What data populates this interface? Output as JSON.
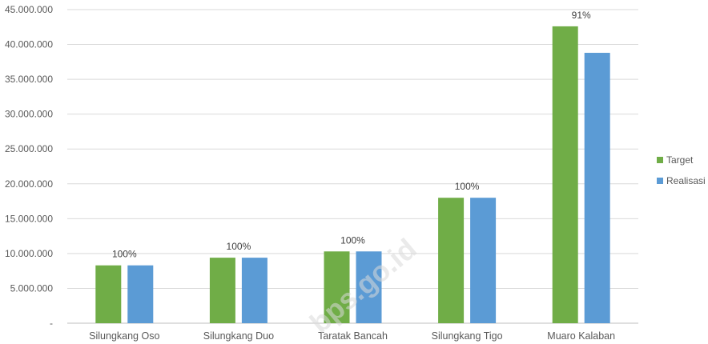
{
  "chart_data": {
    "type": "bar",
    "categories": [
      "Silungkang Oso",
      "Silungkang Duo",
      "Taratak Bancah",
      "Silungkang Tigo",
      "Muaro Kalaban"
    ],
    "series": [
      {
        "name": "Target",
        "color": "#70ad47",
        "values": [
          8300000,
          9400000,
          10300000,
          18000000,
          42600000
        ]
      },
      {
        "name": "Realisasi",
        "color": "#5b9bd5",
        "values": [
          8300000,
          9400000,
          10300000,
          18000000,
          38800000
        ]
      }
    ],
    "data_labels": [
      "100%",
      "100%",
      "100%",
      "100%",
      "91%"
    ],
    "y_ticks": [
      "-",
      "5.000.000",
      "10.000.000",
      "15.000.000",
      "20.000.000",
      "25.000.000",
      "30.000.000",
      "35.000.000",
      "40.000.000",
      "45.000.000"
    ],
    "ylim": [
      0,
      45000000
    ],
    "grid": true,
    "legend_position": "right",
    "watermark": "bps.go.id"
  }
}
